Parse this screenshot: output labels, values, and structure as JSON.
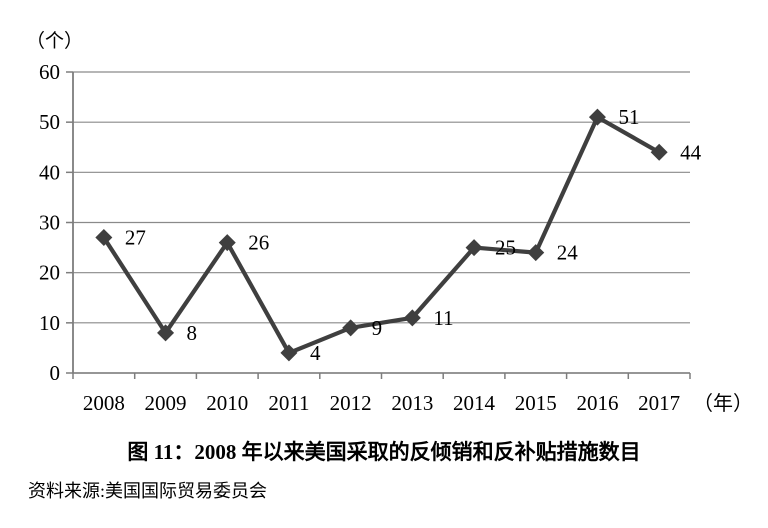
{
  "chart_data": {
    "type": "line",
    "title": "图 11：2008 年以来美国采取的反倾销和反补贴措施数目",
    "source": "资料来源:美国国际贸易委员会",
    "y_axis_unit_label": "（个）",
    "x_axis_unit_label": "（年）",
    "categories": [
      "2008",
      "2009",
      "2010",
      "2011",
      "2012",
      "2013",
      "2014",
      "2015",
      "2016",
      "2017"
    ],
    "values": [
      27,
      8,
      26,
      4,
      9,
      11,
      25,
      24,
      51,
      44
    ],
    "y_ticks": [
      0,
      10,
      20,
      30,
      40,
      50,
      60
    ],
    "ylim": [
      0,
      60
    ],
    "grid": true,
    "legend_position": "none",
    "marker": "diamond",
    "line_color": "#3f3f3f",
    "marker_color": "#3f3f3f",
    "grid_color": "#8a8a8a",
    "axis_color": "#7d7d7d",
    "text_color": "#000000"
  }
}
